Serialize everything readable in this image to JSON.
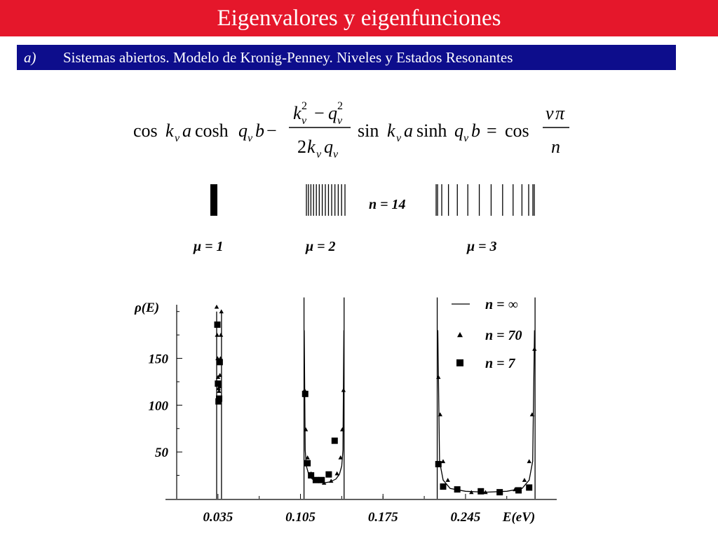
{
  "header": {
    "title": "Eigenvalores y eigenfunciones",
    "item_label": "a)",
    "subtitle": "Sistemas abiertos. Modelo de Kronig-Penney.  Niveles y Estados Resonantes"
  },
  "equation": {
    "cos1": "cos",
    "k": "k",
    "nu": "ν",
    "a": "a",
    "cosh": "cosh",
    "q": "q",
    "b": "b",
    "minus": "−",
    "sq": "2",
    "two": "2",
    "sin": "sin",
    "sinh": "sinh",
    "equals": "=",
    "cos2": "cos",
    "pi": "π",
    "n": "n"
  },
  "levels": {
    "n_label": "n = 14",
    "mu_labels": [
      "μ = 1",
      "μ = 2",
      "μ = 3"
    ]
  },
  "colors": {
    "title_bar": "#e5172b",
    "subtitle_bar": "#0d0d8c",
    "plot": "#000000"
  },
  "chart_data": {
    "type": "line",
    "ylabel": "ρ(E)",
    "xlabel": "E(eV)",
    "xlim": [
      0.0,
      0.32
    ],
    "ylim": [
      0,
      220
    ],
    "x_ticks": [
      "0.035",
      "0.105",
      "0.175",
      "0.245"
    ],
    "y_ticks": [
      "150",
      "100",
      "50"
    ],
    "grid": false,
    "legend_position": "top-right",
    "bands": [
      {
        "name": "μ = 1",
        "e_min": 0.0339,
        "e_max": 0.038
      },
      {
        "name": "μ = 2",
        "e_min": 0.108,
        "e_max": 0.142
      },
      {
        "name": "μ = 3",
        "e_min": 0.221,
        "e_max": 0.304
      }
    ],
    "series": [
      {
        "name": "n = ∞",
        "marker": "line",
        "points": [
          [
            0.1082,
            180
          ],
          [
            0.109,
            52
          ],
          [
            0.11,
            35
          ],
          [
            0.112,
            26
          ],
          [
            0.115,
            21
          ],
          [
            0.12,
            18
          ],
          [
            0.125,
            17
          ],
          [
            0.13,
            18
          ],
          [
            0.135,
            21
          ],
          [
            0.138,
            26
          ],
          [
            0.14,
            35
          ],
          [
            0.141,
            52
          ],
          [
            0.1418,
            180
          ],
          [
            0.2215,
            180
          ],
          [
            0.223,
            40
          ],
          [
            0.226,
            20
          ],
          [
            0.232,
            11
          ],
          [
            0.245,
            8
          ],
          [
            0.262,
            7
          ],
          [
            0.28,
            8
          ],
          [
            0.293,
            11
          ],
          [
            0.299,
            20
          ],
          [
            0.302,
            40
          ],
          [
            0.3035,
            180
          ]
        ]
      },
      {
        "name": "n = 70",
        "marker": "triangle",
        "points": [
          [
            0.0339,
            205
          ],
          [
            0.0343,
            175
          ],
          [
            0.0347,
            150
          ],
          [
            0.0351,
            130
          ],
          [
            0.0355,
            118
          ],
          [
            0.0359,
            115
          ],
          [
            0.0363,
            120
          ],
          [
            0.0367,
            132
          ],
          [
            0.0371,
            150
          ],
          [
            0.0375,
            175
          ],
          [
            0.0379,
            200
          ],
          [
            0.1085,
            116
          ],
          [
            0.1095,
            74
          ],
          [
            0.111,
            44
          ],
          [
            0.114,
            27
          ],
          [
            0.119,
            19
          ],
          [
            0.125,
            17
          ],
          [
            0.131,
            19
          ],
          [
            0.136,
            27
          ],
          [
            0.139,
            44
          ],
          [
            0.1405,
            74
          ],
          [
            0.1415,
            116
          ],
          [
            0.222,
            130
          ],
          [
            0.2235,
            90
          ],
          [
            0.226,
            40
          ],
          [
            0.23,
            20
          ],
          [
            0.238,
            10
          ],
          [
            0.25,
            7
          ],
          [
            0.262,
            7
          ],
          [
            0.275,
            7
          ],
          [
            0.287,
            10
          ],
          [
            0.295,
            20
          ],
          [
            0.299,
            40
          ],
          [
            0.3015,
            90
          ],
          [
            0.3035,
            160
          ]
        ]
      },
      {
        "name": "n = 7",
        "marker": "square",
        "points": [
          [
            0.0345,
            186
          ],
          [
            0.035,
            123
          ],
          [
            0.0355,
            104
          ],
          [
            0.036,
            107
          ],
          [
            0.0365,
            146
          ],
          [
            0.109,
            112
          ],
          [
            0.111,
            38
          ],
          [
            0.114,
            25
          ],
          [
            0.118,
            20
          ],
          [
            0.123,
            20
          ],
          [
            0.129,
            26
          ],
          [
            0.134,
            62
          ],
          [
            0.222,
            37
          ],
          [
            0.226,
            13
          ],
          [
            0.238,
            10
          ],
          [
            0.258,
            8
          ],
          [
            0.274,
            7
          ],
          [
            0.29,
            9
          ],
          [
            0.299,
            12
          ]
        ]
      }
    ]
  }
}
